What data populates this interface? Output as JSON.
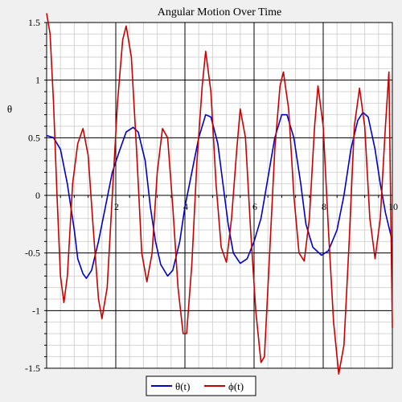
{
  "chart_data": {
    "type": "line",
    "title": "Angular Motion Over Time",
    "xlabel": "",
    "ylabel": "θ",
    "xlim": [
      0,
      10
    ],
    "ylim": [
      -1.5,
      1.5
    ],
    "x_ticks": [
      "2",
      "4",
      "6",
      "8",
      "10"
    ],
    "y_ticks": [
      "-1.5",
      "-1",
      "-0.5",
      "0",
      "0.5",
      "1",
      "1.5"
    ],
    "grid": true,
    "legend_position": "bottom",
    "series": [
      {
        "name": "θ(t)",
        "color": "#0000c8",
        "points": [
          [
            0,
            0.52
          ],
          [
            0.2,
            0.5
          ],
          [
            0.4,
            0.4
          ],
          [
            0.6,
            0.1
          ],
          [
            0.8,
            -0.3
          ],
          [
            0.9,
            -0.55
          ],
          [
            1.05,
            -0.68
          ],
          [
            1.15,
            -0.72
          ],
          [
            1.3,
            -0.65
          ],
          [
            1.5,
            -0.4
          ],
          [
            1.7,
            -0.1
          ],
          [
            1.9,
            0.2
          ],
          [
            2.1,
            0.38
          ],
          [
            2.3,
            0.55
          ],
          [
            2.5,
            0.59
          ],
          [
            2.65,
            0.55
          ],
          [
            2.85,
            0.3
          ],
          [
            3.0,
            -0.1
          ],
          [
            3.15,
            -0.4
          ],
          [
            3.3,
            -0.6
          ],
          [
            3.5,
            -0.7
          ],
          [
            3.65,
            -0.65
          ],
          [
            3.85,
            -0.4
          ],
          [
            4.0,
            -0.1
          ],
          [
            4.2,
            0.2
          ],
          [
            4.4,
            0.5
          ],
          [
            4.6,
            0.7
          ],
          [
            4.75,
            0.68
          ],
          [
            4.95,
            0.45
          ],
          [
            5.1,
            0.1
          ],
          [
            5.25,
            -0.25
          ],
          [
            5.4,
            -0.5
          ],
          [
            5.6,
            -0.59
          ],
          [
            5.8,
            -0.55
          ],
          [
            6.0,
            -0.4
          ],
          [
            6.2,
            -0.2
          ],
          [
            6.4,
            0.15
          ],
          [
            6.6,
            0.5
          ],
          [
            6.8,
            0.7
          ],
          [
            6.95,
            0.7
          ],
          [
            7.15,
            0.5
          ],
          [
            7.35,
            0.1
          ],
          [
            7.5,
            -0.25
          ],
          [
            7.7,
            -0.45
          ],
          [
            7.95,
            -0.52
          ],
          [
            8.15,
            -0.48
          ],
          [
            8.4,
            -0.3
          ],
          [
            8.6,
            0.0
          ],
          [
            8.8,
            0.4
          ],
          [
            9.0,
            0.65
          ],
          [
            9.15,
            0.72
          ],
          [
            9.3,
            0.68
          ],
          [
            9.5,
            0.4
          ],
          [
            9.65,
            0.1
          ],
          [
            9.8,
            -0.15
          ],
          [
            10.0,
            -0.4
          ]
        ]
      },
      {
        "name": "ϕ(t)",
        "color": "#c80000",
        "points": [
          [
            0,
            1.58
          ],
          [
            0.1,
            1.4
          ],
          [
            0.2,
            0.8
          ],
          [
            0.3,
            0.0
          ],
          [
            0.4,
            -0.7
          ],
          [
            0.5,
            -0.93
          ],
          [
            0.6,
            -0.7
          ],
          [
            0.75,
            0.1
          ],
          [
            0.9,
            0.45
          ],
          [
            1.05,
            0.58
          ],
          [
            1.2,
            0.35
          ],
          [
            1.35,
            -0.3
          ],
          [
            1.5,
            -0.9
          ],
          [
            1.6,
            -1.07
          ],
          [
            1.75,
            -0.8
          ],
          [
            1.9,
            0.0
          ],
          [
            2.05,
            0.8
          ],
          [
            2.2,
            1.35
          ],
          [
            2.3,
            1.47
          ],
          [
            2.45,
            1.2
          ],
          [
            2.6,
            0.4
          ],
          [
            2.75,
            -0.5
          ],
          [
            2.9,
            -0.75
          ],
          [
            3.05,
            -0.5
          ],
          [
            3.2,
            0.2
          ],
          [
            3.35,
            0.58
          ],
          [
            3.5,
            0.5
          ],
          [
            3.65,
            -0.1
          ],
          [
            3.8,
            -0.8
          ],
          [
            3.95,
            -1.2
          ],
          [
            4.05,
            -1.2
          ],
          [
            4.2,
            -0.6
          ],
          [
            4.35,
            0.3
          ],
          [
            4.5,
            0.95
          ],
          [
            4.6,
            1.25
          ],
          [
            4.75,
            0.9
          ],
          [
            4.9,
            0.1
          ],
          [
            5.05,
            -0.45
          ],
          [
            5.2,
            -0.58
          ],
          [
            5.35,
            -0.2
          ],
          [
            5.5,
            0.4
          ],
          [
            5.6,
            0.75
          ],
          [
            5.75,
            0.5
          ],
          [
            5.9,
            -0.3
          ],
          [
            6.05,
            -1.0
          ],
          [
            6.2,
            -1.45
          ],
          [
            6.3,
            -1.4
          ],
          [
            6.45,
            -0.5
          ],
          [
            6.6,
            0.4
          ],
          [
            6.75,
            0.95
          ],
          [
            6.85,
            1.07
          ],
          [
            7.0,
            0.75
          ],
          [
            7.15,
            0.0
          ],
          [
            7.3,
            -0.5
          ],
          [
            7.45,
            -0.57
          ],
          [
            7.6,
            -0.2
          ],
          [
            7.75,
            0.6
          ],
          [
            7.85,
            0.95
          ],
          [
            8.0,
            0.6
          ],
          [
            8.15,
            -0.3
          ],
          [
            8.3,
            -1.1
          ],
          [
            8.45,
            -1.55
          ],
          [
            8.6,
            -1.3
          ],
          [
            8.75,
            -0.4
          ],
          [
            8.9,
            0.6
          ],
          [
            9.05,
            0.93
          ],
          [
            9.2,
            0.6
          ],
          [
            9.35,
            -0.2
          ],
          [
            9.5,
            -0.55
          ],
          [
            9.65,
            -0.2
          ],
          [
            9.8,
            0.6
          ],
          [
            9.9,
            1.07
          ],
          [
            10.0,
            -1.15
          ]
        ]
      }
    ]
  }
}
